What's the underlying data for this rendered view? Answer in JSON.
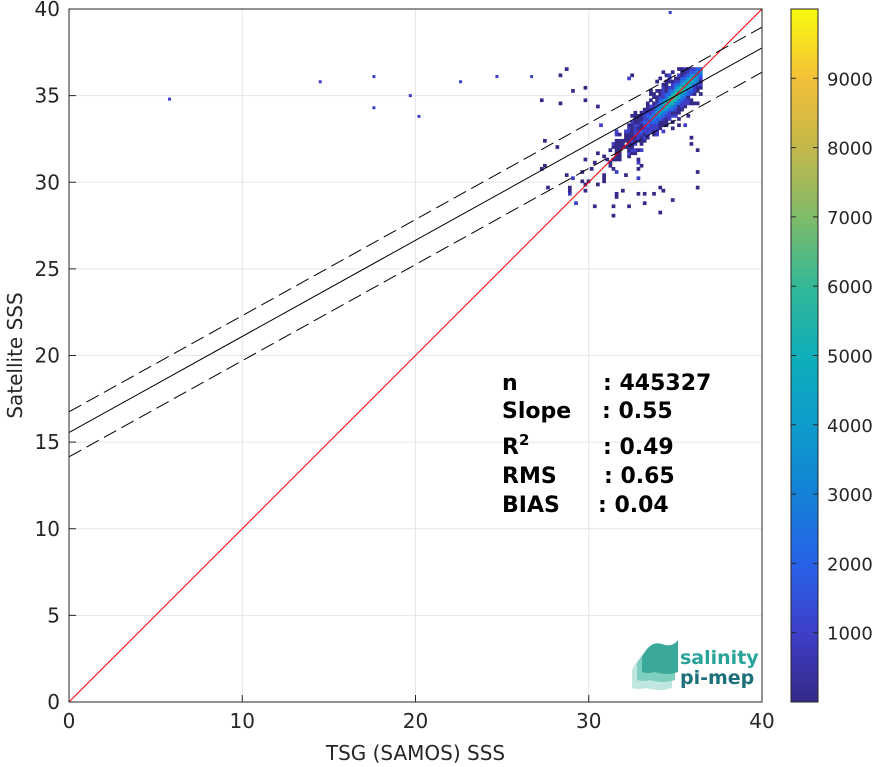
{
  "chart_data": {
    "type": "heatmap",
    "xlabel": "TSG (SAMOS) SSS",
    "ylabel": "Satellite SSS",
    "xlim": [
      0,
      40
    ],
    "ylim": [
      0,
      40
    ],
    "x_ticks": [
      "0",
      "10",
      "20",
      "30",
      "40"
    ],
    "y_ticks": [
      "0",
      "5",
      "10",
      "15",
      "20",
      "25",
      "30",
      "35",
      "40"
    ],
    "grid": true,
    "colormap": "parula",
    "colorbar": {
      "ticks": [
        "1000",
        "2000",
        "3000",
        "4000",
        "5000",
        "6000",
        "7000",
        "8000",
        "9000"
      ],
      "range": [
        0,
        10000
      ]
    },
    "lines": [
      {
        "kind": "identity",
        "color": "#ff0000",
        "from": [
          0,
          0
        ],
        "to": [
          40,
          40
        ]
      },
      {
        "kind": "fit",
        "color": "#000000",
        "intercept": 15.55,
        "slope": 0.555
      },
      {
        "kind": "fit-upper",
        "color": "#000000",
        "dashed": true,
        "intercept": 16.75,
        "slope": 0.555
      },
      {
        "kind": "fit-lower",
        "color": "#000000",
        "dashed": true,
        "intercept": 14.15,
        "slope": 0.555
      }
    ],
    "density": {
      "peak": [
        35,
        35
      ],
      "main_cloud": {
        "x_range": [
          27,
          36.5
        ],
        "y_range": [
          28,
          36.5
        ]
      },
      "outliers": [
        [
          5.8,
          34.8
        ],
        [
          14.5,
          35.8
        ],
        [
          17.6,
          36.1
        ],
        [
          17.6,
          34.3
        ],
        [
          19.7,
          35
        ],
        [
          20.2,
          33.8
        ],
        [
          22.6,
          35.8
        ],
        [
          24.7,
          36.1
        ],
        [
          26.7,
          36.1
        ],
        [
          34.7,
          39.8
        ]
      ]
    }
  },
  "stats": {
    "n_label": "n",
    "n_value": ": 445327",
    "slope_label": "Slope",
    "slope_value": ": 0.55",
    "r2_label": "R",
    "r2_sup": "2",
    "r2_value": ": 0.49",
    "rms_label": "RMS",
    "rms_value": ": 0.65",
    "bias_label": "BIAS",
    "bias_value": ": 0.04"
  },
  "logo": {
    "line1": "salinity",
    "line2": "pi-mep",
    "color1": "#2aa39a",
    "color2": "#1d6f7a"
  }
}
